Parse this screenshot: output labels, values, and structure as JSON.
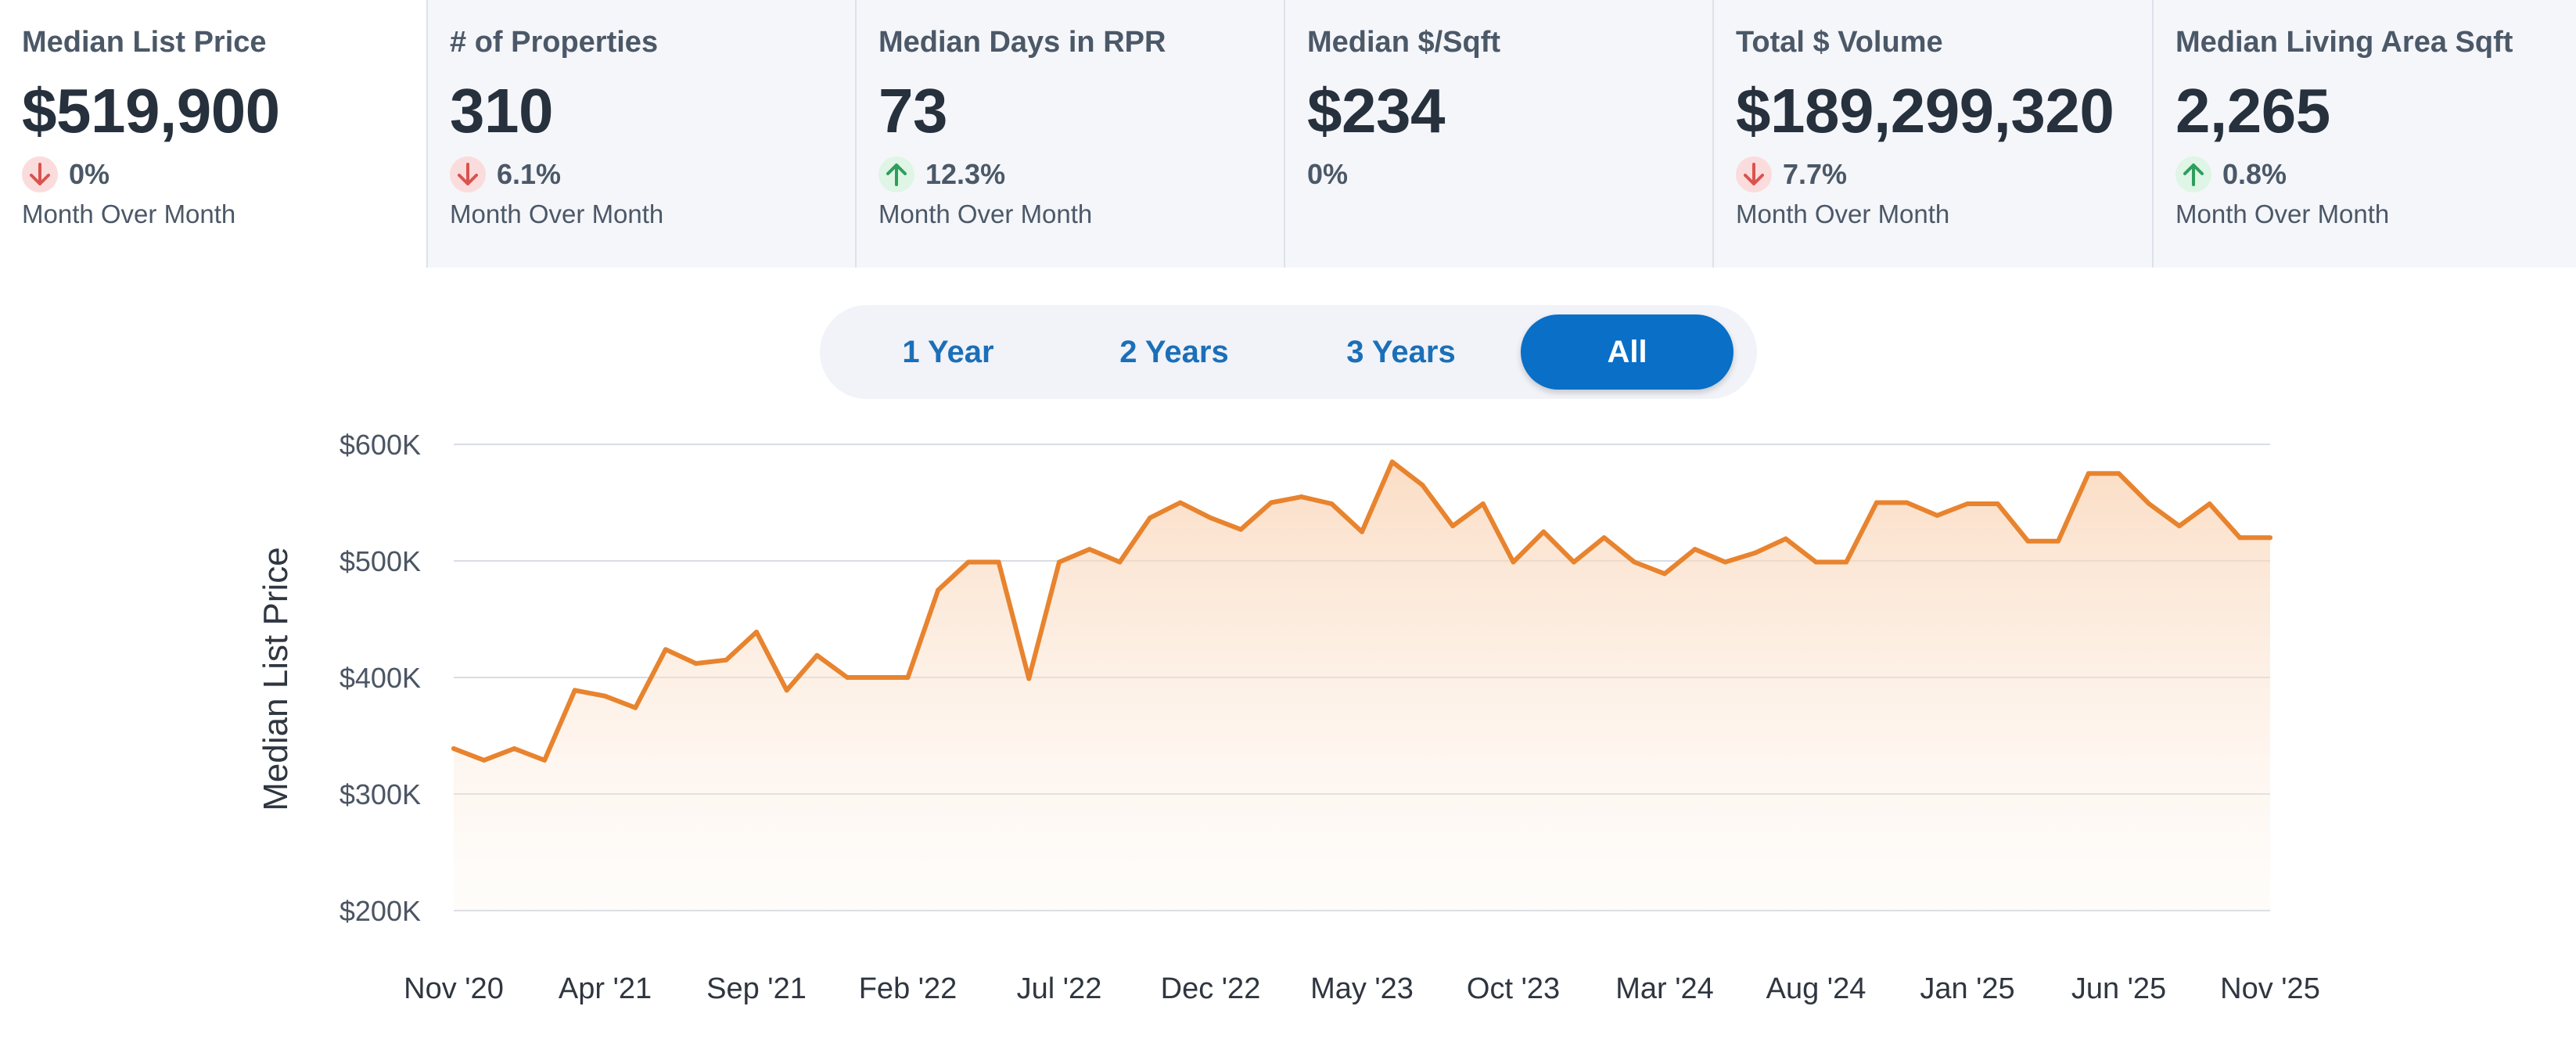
{
  "cards": [
    {
      "title": "Median List Price",
      "value": "$519,900",
      "direction": "down",
      "change": "0%",
      "period": "Month Over Month"
    },
    {
      "title": "# of Properties",
      "value": "310",
      "direction": "down",
      "change": "6.1%",
      "period": "Month Over Month"
    },
    {
      "title": "Median Days in RPR",
      "value": "73",
      "direction": "up",
      "change": "12.3%",
      "period": "Month Over Month"
    },
    {
      "title": "Median $/Sqft",
      "value": "$234",
      "direction": "none",
      "change": "0%",
      "period": ""
    },
    {
      "title": "Total $ Volume",
      "value": "$189,299,320",
      "direction": "down",
      "change": "7.7%",
      "period": "Month Over Month"
    },
    {
      "title": "Median Living Area Sqft",
      "value": "2,265",
      "direction": "up",
      "change": "0.8%",
      "period": "Month Over Month"
    }
  ],
  "range_selector": {
    "options": [
      "1 Year",
      "2 Years",
      "3 Years",
      "All"
    ],
    "selected": "All"
  },
  "colors": {
    "accent": "#0a6fc7",
    "line": "#e8832e",
    "down": "#d9534f",
    "up": "#2e9e5b"
  },
  "chart_data": {
    "type": "area",
    "ylabel": "Median List Price",
    "xlabel": "",
    "ylim": [
      200000,
      600000
    ],
    "y_ticks": [
      {
        "value": 600000,
        "label": "$600K"
      },
      {
        "value": 500000,
        "label": "$500K"
      },
      {
        "value": 400000,
        "label": "$400K"
      },
      {
        "value": 300000,
        "label": "$300K"
      },
      {
        "value": 200000,
        "label": "$200K"
      }
    ],
    "x_ticks": [
      {
        "index": 0,
        "label": "Nov '20"
      },
      {
        "index": 5,
        "label": "Apr '21"
      },
      {
        "index": 10,
        "label": "Sep '21"
      },
      {
        "index": 15,
        "label": "Feb '22"
      },
      {
        "index": 20,
        "label": "Jul '22"
      },
      {
        "index": 25,
        "label": "Dec '22"
      },
      {
        "index": 30,
        "label": "May '23"
      },
      {
        "index": 35,
        "label": "Oct '23"
      },
      {
        "index": 40,
        "label": "Mar '24"
      },
      {
        "index": 45,
        "label": "Aug '24"
      },
      {
        "index": 50,
        "label": "Jan '25"
      },
      {
        "index": 55,
        "label": "Jun '25"
      },
      {
        "index": 60,
        "label": "Nov '25"
      }
    ],
    "grid": true,
    "series": [
      {
        "name": "Median List Price",
        "values": [
          339000,
          329000,
          339000,
          329000,
          389000,
          384000,
          374000,
          424000,
          412000,
          415000,
          439000,
          389000,
          419000,
          400000,
          400000,
          400000,
          475000,
          499000,
          499000,
          399000,
          499000,
          510000,
          499000,
          537000,
          550000,
          537000,
          527000,
          550000,
          555000,
          549000,
          525000,
          585000,
          565000,
          530000,
          549000,
          499000,
          525000,
          499000,
          520000,
          499000,
          489000,
          510000,
          499000,
          507000,
          519000,
          499000,
          499000,
          550000,
          550000,
          539000,
          549000,
          549000,
          517000,
          517000,
          575000,
          575000,
          549000,
          530000,
          549000,
          519900,
          519900
        ]
      }
    ]
  }
}
